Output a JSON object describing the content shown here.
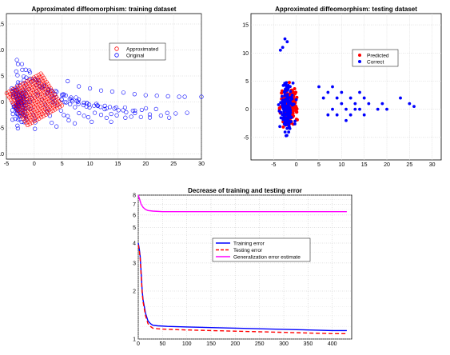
{
  "chart_data": [
    {
      "type": "scatter",
      "title": "Approximated diffeomorphism: training dataset",
      "xlim": [
        -5,
        30
      ],
      "ylim": [
        -11,
        17
      ],
      "xticks": [
        -5,
        0,
        5,
        10,
        15,
        20,
        25,
        30
      ],
      "yticks": [
        -10,
        -5,
        0,
        5,
        10,
        15
      ],
      "grid": true,
      "legend_position": "top-right",
      "series": [
        {
          "name": "Approximated",
          "marker": "open-circle",
          "color": "#ff0000"
        },
        {
          "name": "Original",
          "marker": "open-circle",
          "color": "#0000ff"
        }
      ],
      "regions": {
        "approximated": {
          "x": [
            -4.2,
            4.2
          ],
          "y": [
            -3.2,
            4.2
          ]
        },
        "original_cluster": {
          "x": [
            -4.5,
            2.5
          ],
          "y": [
            -6,
            9
          ]
        },
        "original_tail_end": [
          27,
          1
        ]
      }
    },
    {
      "type": "scatter",
      "title": "Approximated diffeomorphism: testing dataset",
      "xlim": [
        -10,
        32
      ],
      "ylim": [
        -9,
        17
      ],
      "xticks": [
        -5,
        0,
        5,
        10,
        15,
        20,
        25,
        30
      ],
      "yticks": [
        -5,
        0,
        5,
        10,
        15
      ],
      "grid": true,
      "legend_position": "top-right",
      "series": [
        {
          "name": "Predicted",
          "marker": "filled-circle",
          "color": "#ff0000"
        },
        {
          "name": "Correct",
          "marker": "filled-circle",
          "color": "#0000ff"
        }
      ],
      "outliers": [
        [
          5,
          4
        ],
        [
          7,
          3
        ],
        [
          8,
          0
        ],
        [
          9,
          2
        ],
        [
          10,
          1
        ],
        [
          11,
          0
        ],
        [
          12,
          -1
        ],
        [
          13,
          1
        ],
        [
          14,
          0
        ],
        [
          15,
          2
        ],
        [
          16,
          1
        ],
        [
          18,
          0
        ],
        [
          19,
          1
        ],
        [
          20,
          0
        ],
        [
          23,
          2
        ],
        [
          25,
          1
        ],
        [
          26,
          0.5
        ],
        [
          9,
          -1
        ],
        [
          11,
          -2
        ],
        [
          13,
          0
        ],
        [
          15,
          -1
        ],
        [
          7,
          -1
        ],
        [
          6,
          2
        ],
        [
          10,
          3
        ],
        [
          12,
          2
        ],
        [
          14,
          3
        ],
        [
          8,
          4
        ]
      ]
    },
    {
      "type": "line",
      "title": "Decrease of training and testing error",
      "xlim": [
        0,
        440
      ],
      "ylim": [
        1,
        8
      ],
      "yscale": "log",
      "xticks": [
        0,
        50,
        100,
        150,
        200,
        250,
        300,
        350,
        400
      ],
      "yticks": [
        1,
        2,
        3,
        4,
        5,
        6,
        7,
        8
      ],
      "grid": true,
      "legend_position": "center-right",
      "series": [
        {
          "name": "Training error",
          "color": "#0000ff",
          "style": "solid",
          "x": [
            0,
            2,
            4,
            6,
            8,
            10,
            15,
            20,
            25,
            30,
            40,
            60,
            100,
            200,
            300,
            400,
            430
          ],
          "y": [
            4.0,
            3.7,
            3.3,
            2.6,
            2.0,
            1.75,
            1.45,
            1.3,
            1.25,
            1.22,
            1.21,
            1.2,
            1.19,
            1.17,
            1.15,
            1.13,
            1.13
          ]
        },
        {
          "name": "Testing error",
          "color": "#ff0000",
          "style": "dashed",
          "x": [
            0,
            2,
            4,
            6,
            8,
            10,
            15,
            20,
            25,
            30,
            40,
            60,
            100,
            200,
            300,
            400,
            430
          ],
          "y": [
            3.9,
            3.6,
            3.2,
            2.5,
            1.95,
            1.7,
            1.4,
            1.25,
            1.2,
            1.17,
            1.16,
            1.15,
            1.14,
            1.12,
            1.1,
            1.08,
            1.08
          ]
        },
        {
          "name": "Generalization error estimate",
          "color": "#ff00ff",
          "style": "solid",
          "x": [
            0,
            3,
            6,
            10,
            15,
            20,
            30,
            50,
            100,
            200,
            300,
            400,
            430
          ],
          "y": [
            8.0,
            7.5,
            7.0,
            6.7,
            6.5,
            6.4,
            6.35,
            6.3,
            6.3,
            6.3,
            6.3,
            6.3,
            6.3
          ]
        }
      ]
    }
  ]
}
